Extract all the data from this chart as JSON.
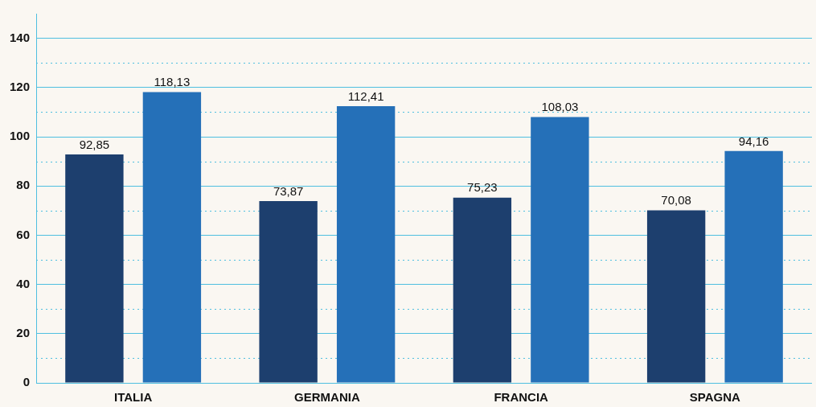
{
  "chart_data": {
    "type": "bar",
    "categories": [
      "ITALIA",
      "GERMANIA",
      "FRANCIA",
      "SPAGNA"
    ],
    "series": [
      {
        "color": "#1d3f6e",
        "values": [
          92.85,
          73.87,
          75.23,
          70.08
        ],
        "value_labels": [
          "92,85",
          "73,87",
          "75,23",
          "70,08"
        ]
      },
      {
        "color": "#2570b8",
        "values": [
          118.13,
          112.41,
          108.03,
          94.16
        ],
        "value_labels": [
          "118,13",
          "112,41",
          "108,03",
          "94,16"
        ]
      }
    ],
    "ylim": [
      0,
      150
    ],
    "yticks": [
      0,
      {
        "value": 10,
        "label": null
      },
      20,
      {
        "value": 30,
        "label": null
      },
      40,
      {
        "value": 50,
        "label": null
      },
      60,
      {
        "value": 70,
        "label": null
      },
      80,
      {
        "value": 90,
        "label": null
      },
      100,
      {
        "value": 110,
        "label": null
      },
      120,
      {
        "value": 130,
        "label": null
      },
      140
    ],
    "grid": "y",
    "legend": false
  }
}
